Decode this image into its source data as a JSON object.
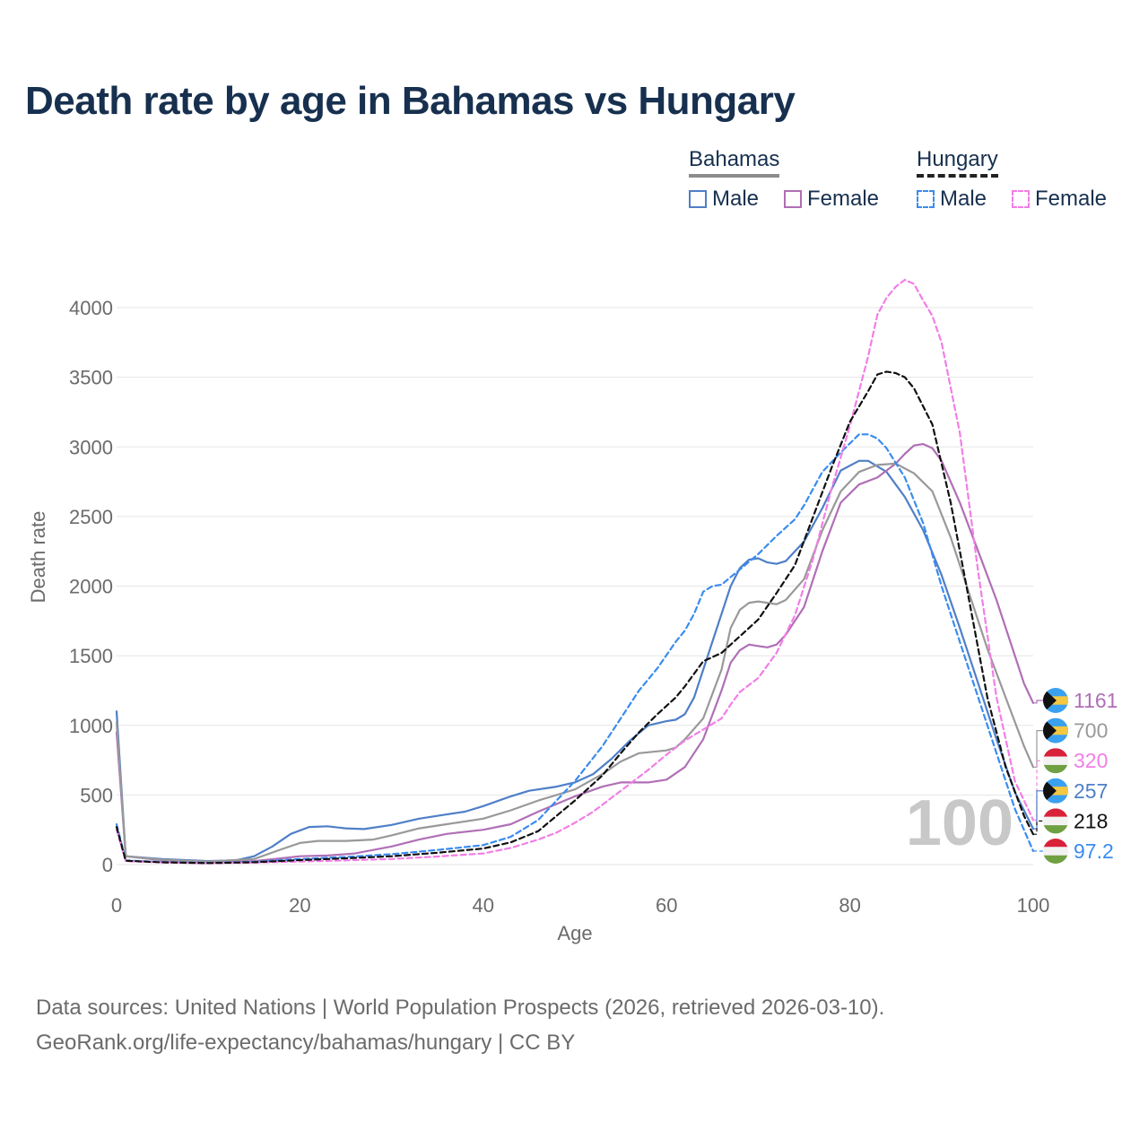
{
  "title": "Death rate by age in Bahamas vs Hungary",
  "legend": {
    "groups": [
      {
        "name": "Bahamas",
        "items": [
          "Male",
          "Female"
        ]
      },
      {
        "name": "Hungary",
        "items": [
          "Male",
          "Female"
        ]
      }
    ]
  },
  "colors": {
    "bahamas_male": "#4f7fc7",
    "bahamas_female": "#b06fb6",
    "bahamas_total": "#999999",
    "hungary_male": "#3a8cef",
    "hungary_female": "#f27ee6",
    "hungary_total": "#111111",
    "grid": "#e5e5e5",
    "axis_text": "#6b6b6b"
  },
  "icons": {
    "bahamas_flag": "bahamas-flag-icon",
    "hungary_flag": "hungary-flag-icon"
  },
  "watermark": "100",
  "footer": {
    "line1": "Data sources: United Nations | World Population Prospects (2026, retrieved 2026-03-10).",
    "line2": "GeoRank.org/life-expectancy/bahamas/hungary | CC BY"
  },
  "chart_data": {
    "type": "line",
    "xlabel": "Age",
    "ylabel": "Death rate",
    "xlim": [
      0,
      100
    ],
    "ylim": [
      0,
      4200
    ],
    "xticks": [
      0,
      20,
      40,
      60,
      80,
      100
    ],
    "yticks": [
      0,
      500,
      1000,
      1500,
      2000,
      2500,
      3000,
      3500,
      4000
    ],
    "grid": true,
    "series": [
      {
        "name": "Bahamas Male",
        "country": "Bahamas",
        "style": "solid",
        "color_key": "bahamas_male",
        "end_label": "257",
        "points": [
          [
            0,
            1100
          ],
          [
            1,
            60
          ],
          [
            5,
            40
          ],
          [
            10,
            25
          ],
          [
            13,
            30
          ],
          [
            15,
            60
          ],
          [
            17,
            130
          ],
          [
            19,
            220
          ],
          [
            21,
            270
          ],
          [
            23,
            275
          ],
          [
            25,
            260
          ],
          [
            27,
            255
          ],
          [
            30,
            285
          ],
          [
            33,
            330
          ],
          [
            36,
            360
          ],
          [
            38,
            380
          ],
          [
            40,
            420
          ],
          [
            43,
            490
          ],
          [
            45,
            530
          ],
          [
            48,
            560
          ],
          [
            50,
            590
          ],
          [
            52,
            650
          ],
          [
            54,
            760
          ],
          [
            56,
            890
          ],
          [
            58,
            1000
          ],
          [
            60,
            1030
          ],
          [
            61,
            1040
          ],
          [
            62,
            1080
          ],
          [
            63,
            1200
          ],
          [
            64,
            1400
          ],
          [
            66,
            1800
          ],
          [
            67,
            2000
          ],
          [
            68,
            2130
          ],
          [
            69,
            2190
          ],
          [
            70,
            2200
          ],
          [
            71,
            2170
          ],
          [
            72,
            2160
          ],
          [
            73,
            2180
          ],
          [
            75,
            2320
          ],
          [
            77,
            2560
          ],
          [
            79,
            2830
          ],
          [
            81,
            2900
          ],
          [
            82,
            2900
          ],
          [
            84,
            2820
          ],
          [
            86,
            2640
          ],
          [
            88,
            2400
          ],
          [
            90,
            2080
          ],
          [
            92,
            1700
          ],
          [
            94,
            1300
          ],
          [
            96,
            900
          ],
          [
            98,
            520
          ],
          [
            100,
            257
          ]
        ]
      },
      {
        "name": "Bahamas Female",
        "country": "Bahamas",
        "style": "solid",
        "color_key": "bahamas_female",
        "end_label": "1161",
        "points": [
          [
            0,
            950
          ],
          [
            1,
            60
          ],
          [
            5,
            30
          ],
          [
            10,
            20
          ],
          [
            15,
            25
          ],
          [
            18,
            45
          ],
          [
            20,
            60
          ],
          [
            23,
            65
          ],
          [
            26,
            80
          ],
          [
            30,
            130
          ],
          [
            33,
            180
          ],
          [
            36,
            220
          ],
          [
            40,
            250
          ],
          [
            43,
            290
          ],
          [
            46,
            380
          ],
          [
            50,
            490
          ],
          [
            53,
            560
          ],
          [
            55,
            590
          ],
          [
            58,
            590
          ],
          [
            60,
            610
          ],
          [
            62,
            700
          ],
          [
            64,
            900
          ],
          [
            66,
            1250
          ],
          [
            67,
            1450
          ],
          [
            68,
            1540
          ],
          [
            69,
            1580
          ],
          [
            70,
            1570
          ],
          [
            71,
            1560
          ],
          [
            72,
            1580
          ],
          [
            73,
            1650
          ],
          [
            75,
            1850
          ],
          [
            77,
            2250
          ],
          [
            79,
            2600
          ],
          [
            81,
            2730
          ],
          [
            83,
            2780
          ],
          [
            85,
            2880
          ],
          [
            86,
            2950
          ],
          [
            87,
            3010
          ],
          [
            88,
            3020
          ],
          [
            89,
            2990
          ],
          [
            90,
            2900
          ],
          [
            92,
            2600
          ],
          [
            94,
            2250
          ],
          [
            96,
            1900
          ],
          [
            98,
            1500
          ],
          [
            99,
            1300
          ],
          [
            100,
            1161
          ]
        ]
      },
      {
        "name": "Bahamas Total",
        "country": "Bahamas",
        "style": "solid",
        "color_key": "bahamas_total",
        "end_label": "700",
        "points": [
          [
            0,
            1020
          ],
          [
            1,
            60
          ],
          [
            5,
            35
          ],
          [
            10,
            22
          ],
          [
            15,
            40
          ],
          [
            18,
            110
          ],
          [
            20,
            155
          ],
          [
            22,
            170
          ],
          [
            25,
            170
          ],
          [
            28,
            180
          ],
          [
            30,
            210
          ],
          [
            33,
            260
          ],
          [
            36,
            290
          ],
          [
            40,
            330
          ],
          [
            43,
            390
          ],
          [
            46,
            460
          ],
          [
            50,
            540
          ],
          [
            53,
            650
          ],
          [
            55,
            740
          ],
          [
            57,
            800
          ],
          [
            60,
            820
          ],
          [
            61,
            840
          ],
          [
            62,
            900
          ],
          [
            64,
            1050
          ],
          [
            66,
            1400
          ],
          [
            67,
            1700
          ],
          [
            68,
            1830
          ],
          [
            69,
            1880
          ],
          [
            70,
            1890
          ],
          [
            72,
            1870
          ],
          [
            73,
            1900
          ],
          [
            75,
            2050
          ],
          [
            77,
            2400
          ],
          [
            79,
            2680
          ],
          [
            81,
            2820
          ],
          [
            83,
            2870
          ],
          [
            85,
            2880
          ],
          [
            87,
            2810
          ],
          [
            89,
            2680
          ],
          [
            91,
            2350
          ],
          [
            93,
            1950
          ],
          [
            95,
            1550
          ],
          [
            97,
            1200
          ],
          [
            99,
            850
          ],
          [
            100,
            700
          ]
        ]
      },
      {
        "name": "Hungary Male",
        "country": "Hungary",
        "style": "dashed",
        "color_key": "hungary_male",
        "end_label": "97.2",
        "points": [
          [
            0,
            290
          ],
          [
            1,
            30
          ],
          [
            5,
            18
          ],
          [
            10,
            12
          ],
          [
            15,
            20
          ],
          [
            20,
            40
          ],
          [
            25,
            55
          ],
          [
            30,
            75
          ],
          [
            35,
            105
          ],
          [
            40,
            140
          ],
          [
            43,
            200
          ],
          [
            46,
            320
          ],
          [
            50,
            600
          ],
          [
            53,
            850
          ],
          [
            55,
            1050
          ],
          [
            57,
            1250
          ],
          [
            59,
            1410
          ],
          [
            61,
            1600
          ],
          [
            62,
            1680
          ],
          [
            63,
            1800
          ],
          [
            64,
            1960
          ],
          [
            65,
            2000
          ],
          [
            66,
            2010
          ],
          [
            68,
            2120
          ],
          [
            70,
            2230
          ],
          [
            72,
            2360
          ],
          [
            74,
            2480
          ],
          [
            75,
            2580
          ],
          [
            77,
            2820
          ],
          [
            79,
            2960
          ],
          [
            81,
            3090
          ],
          [
            82,
            3090
          ],
          [
            83,
            3060
          ],
          [
            84,
            2990
          ],
          [
            86,
            2780
          ],
          [
            88,
            2450
          ],
          [
            90,
            2000
          ],
          [
            92,
            1600
          ],
          [
            94,
            1200
          ],
          [
            96,
            800
          ],
          [
            98,
            400
          ],
          [
            100,
            97.2
          ]
        ]
      },
      {
        "name": "Hungary Female",
        "country": "Hungary",
        "style": "dashed",
        "color_key": "hungary_female",
        "end_label": "320",
        "points": [
          [
            0,
            250
          ],
          [
            1,
            25
          ],
          [
            5,
            15
          ],
          [
            10,
            10
          ],
          [
            15,
            14
          ],
          [
            20,
            22
          ],
          [
            25,
            30
          ],
          [
            30,
            40
          ],
          [
            35,
            58
          ],
          [
            40,
            80
          ],
          [
            43,
            120
          ],
          [
            46,
            180
          ],
          [
            48,
            230
          ],
          [
            50,
            300
          ],
          [
            52,
            380
          ],
          [
            54,
            480
          ],
          [
            56,
            580
          ],
          [
            58,
            680
          ],
          [
            60,
            790
          ],
          [
            62,
            890
          ],
          [
            64,
            970
          ],
          [
            66,
            1050
          ],
          [
            67,
            1150
          ],
          [
            68,
            1240
          ],
          [
            70,
            1340
          ],
          [
            72,
            1520
          ],
          [
            74,
            1790
          ],
          [
            76,
            2200
          ],
          [
            78,
            2700
          ],
          [
            80,
            3150
          ],
          [
            82,
            3650
          ],
          [
            83,
            3950
          ],
          [
            84,
            4070
          ],
          [
            85,
            4150
          ],
          [
            86,
            4200
          ],
          [
            87,
            4170
          ],
          [
            88,
            4050
          ],
          [
            89,
            3940
          ],
          [
            90,
            3750
          ],
          [
            92,
            3100
          ],
          [
            94,
            2100
          ],
          [
            96,
            1200
          ],
          [
            98,
            600
          ],
          [
            100,
            320
          ]
        ]
      },
      {
        "name": "Hungary Total",
        "country": "Hungary",
        "style": "dashed",
        "color_key": "hungary_total",
        "end_label": "218",
        "points": [
          [
            0,
            270
          ],
          [
            1,
            28
          ],
          [
            5,
            16
          ],
          [
            10,
            11
          ],
          [
            15,
            17
          ],
          [
            20,
            32
          ],
          [
            25,
            45
          ],
          [
            30,
            60
          ],
          [
            35,
            85
          ],
          [
            40,
            115
          ],
          [
            43,
            160
          ],
          [
            46,
            240
          ],
          [
            50,
            460
          ],
          [
            53,
            640
          ],
          [
            55,
            800
          ],
          [
            57,
            950
          ],
          [
            59,
            1080
          ],
          [
            61,
            1200
          ],
          [
            62,
            1280
          ],
          [
            64,
            1460
          ],
          [
            66,
            1520
          ],
          [
            68,
            1640
          ],
          [
            70,
            1760
          ],
          [
            72,
            1950
          ],
          [
            74,
            2150
          ],
          [
            76,
            2500
          ],
          [
            78,
            2850
          ],
          [
            80,
            3180
          ],
          [
            82,
            3400
          ],
          [
            83,
            3520
          ],
          [
            84,
            3540
          ],
          [
            85,
            3530
          ],
          [
            86,
            3500
          ],
          [
            87,
            3420
          ],
          [
            89,
            3160
          ],
          [
            91,
            2600
          ],
          [
            93,
            1900
          ],
          [
            95,
            1200
          ],
          [
            97,
            700
          ],
          [
            99,
            350
          ],
          [
            100,
            218
          ]
        ]
      }
    ],
    "end_labels_order": [
      {
        "series": "Bahamas Female",
        "flag": "Bahamas",
        "text": "1161"
      },
      {
        "series": "Bahamas Total",
        "flag": "Bahamas",
        "text": "700"
      },
      {
        "series": "Hungary Female",
        "flag": "Hungary",
        "text": "320"
      },
      {
        "series": "Bahamas Male",
        "flag": "Bahamas",
        "text": "257"
      },
      {
        "series": "Hungary Total",
        "flag": "Hungary",
        "text": "218"
      },
      {
        "series": "Hungary Male",
        "flag": "Hungary",
        "text": "97.2"
      }
    ]
  }
}
